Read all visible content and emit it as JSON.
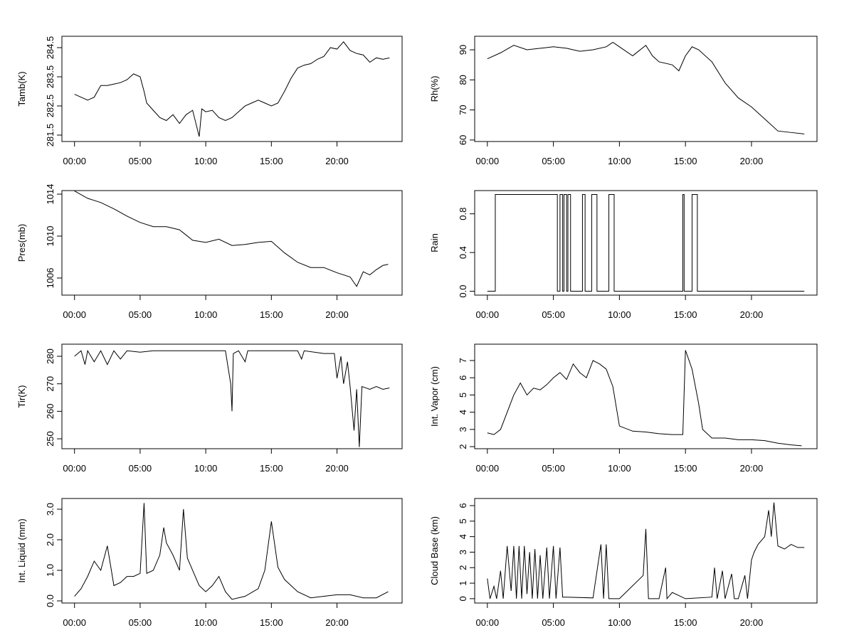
{
  "chart_data": [
    {
      "type": "line",
      "y_label": "Tamb(K)",
      "color": "#000000",
      "x": [
        0,
        0.5,
        1,
        1.5,
        2,
        2.5,
        3,
        3.5,
        4,
        4.5,
        5,
        5.3,
        5.5,
        6,
        6.5,
        7,
        7.5,
        8,
        8.5,
        9,
        9.5,
        9.7,
        10,
        10.5,
        11,
        11.5,
        12,
        12.5,
        13,
        13.5,
        14,
        14.5,
        15,
        15.5,
        16,
        16.5,
        17,
        17.5,
        18,
        18.5,
        19,
        19.5,
        20,
        20.5,
        21,
        21.5,
        22,
        22.5,
        23,
        23.5,
        24
      ],
      "values": [
        282.9,
        282.8,
        282.7,
        282.8,
        283.2,
        283.2,
        283.25,
        283.3,
        283.4,
        283.6,
        283.5,
        283.0,
        282.6,
        282.35,
        282.1,
        282.0,
        282.2,
        281.9,
        282.2,
        282.35,
        281.45,
        282.4,
        282.3,
        282.35,
        282.1,
        282.0,
        282.1,
        282.3,
        282.5,
        282.6,
        282.7,
        282.6,
        282.5,
        282.6,
        283.0,
        283.45,
        283.8,
        283.9,
        283.95,
        284.1,
        284.2,
        284.5,
        284.45,
        284.7,
        284.4,
        284.3,
        284.25,
        284.0,
        284.15,
        284.1,
        284.15
      ],
      "xlim": [
        -0.96,
        24.96
      ],
      "xticks": [
        {
          "value": 0,
          "label": "00:00"
        },
        {
          "value": 5,
          "label": "05:00"
        },
        {
          "value": 10,
          "label": "10:00"
        },
        {
          "value": 15,
          "label": "15:00"
        },
        {
          "value": 20,
          "label": "20:00"
        }
      ],
      "ylim": [
        281.28,
        284.89
      ],
      "yticks": [
        281.5,
        282.5,
        283.5,
        284.5
      ]
    },
    {
      "type": "line",
      "y_label": "Rh(%)",
      "color": "#000000",
      "x": [
        0,
        1,
        2,
        3,
        4,
        5,
        6,
        7,
        8,
        9,
        9.5,
        10,
        11,
        12,
        12.5,
        13,
        14,
        14.5,
        15,
        15.5,
        16,
        17,
        18,
        19,
        20,
        21,
        22,
        23,
        24
      ],
      "values": [
        87,
        89,
        91.5,
        90,
        90.5,
        91,
        90.5,
        89.5,
        90,
        91,
        92.5,
        91,
        88,
        91.5,
        88,
        86,
        85,
        83,
        88,
        91,
        90,
        86,
        79,
        74,
        71,
        67,
        63,
        62.5,
        62
      ],
      "xlim": [
        -0.96,
        24.96
      ],
      "xticks": [
        {
          "value": 0,
          "label": "00:00"
        },
        {
          "value": 5,
          "label": "05:00"
        },
        {
          "value": 10,
          "label": "10:00"
        },
        {
          "value": 15,
          "label": "15:00"
        },
        {
          "value": 20,
          "label": "20:00"
        }
      ],
      "ylim": [
        59.5,
        94.5
      ],
      "yticks": [
        60,
        70,
        80,
        90
      ]
    },
    {
      "type": "line",
      "y_label": "Pres(mb)",
      "color": "#000000",
      "x": [
        0,
        1,
        2,
        3,
        4,
        5,
        6,
        7,
        8,
        9,
        10,
        11,
        12,
        13,
        14,
        15,
        16,
        17,
        18,
        19,
        20,
        21,
        21.5,
        22,
        22.5,
        23,
        23.5,
        23.9
      ],
      "values": [
        1014.3,
        1013.6,
        1013.2,
        1012.6,
        1011.9,
        1011.3,
        1010.9,
        1010.9,
        1010.6,
        1009.6,
        1009.4,
        1009.7,
        1009.1,
        1009.2,
        1009.4,
        1009.5,
        1008.4,
        1007.5,
        1007.0,
        1007.0,
        1006.5,
        1006.1,
        1005.2,
        1006.6,
        1006.3,
        1006.8,
        1007.2,
        1007.3
      ],
      "xlim": [
        -0.96,
        24.96
      ],
      "xticks": [
        {
          "value": 0,
          "label": "00:00"
        },
        {
          "value": 5,
          "label": "05:00"
        },
        {
          "value": 10,
          "label": "10:00"
        },
        {
          "value": 15,
          "label": "15:00"
        },
        {
          "value": 20,
          "label": "20:00"
        }
      ],
      "ylim": [
        1004.37,
        1014.34
      ],
      "yticks": [
        1006,
        1010,
        1014
      ]
    },
    {
      "type": "line",
      "y_label": "Rain",
      "color": "#000000",
      "x": [
        0,
        0.6,
        0.6,
        5.3,
        5.3,
        5.5,
        5.5,
        5.7,
        5.7,
        5.8,
        5.8,
        6.0,
        6.0,
        6.1,
        6.1,
        6.3,
        6.3,
        7.2,
        7.2,
        7.4,
        7.4,
        7.9,
        7.9,
        8.3,
        8.3,
        9.2,
        9.2,
        9.6,
        9.6,
        14.8,
        14.8,
        14.9,
        14.9,
        15.5,
        15.5,
        15.9,
        15.9,
        24
      ],
      "values": [
        0,
        0,
        1,
        1,
        0,
        0,
        1,
        1,
        0,
        0,
        1,
        1,
        0,
        0,
        1,
        1,
        0,
        0,
        1,
        1,
        0,
        0,
        1,
        1,
        0,
        0,
        1,
        1,
        0,
        0,
        1,
        1,
        0,
        0,
        1,
        1,
        0,
        0
      ],
      "xlim": [
        -0.96,
        24.96
      ],
      "xticks": [
        {
          "value": 0,
          "label": "00:00"
        },
        {
          "value": 5,
          "label": "05:00"
        },
        {
          "value": 10,
          "label": "10:00"
        },
        {
          "value": 15,
          "label": "15:00"
        },
        {
          "value": 20,
          "label": "20:00"
        }
      ],
      "ylim": [
        -0.04,
        1.04
      ],
      "yticks": [
        {
          "value": 0,
          "label": "0.0"
        },
        {
          "value": 0.4,
          "label": "0.4"
        },
        {
          "value": 0.8,
          "label": "0.8"
        }
      ]
    },
    {
      "type": "line",
      "y_label": "Tir(K)",
      "color": "#000000",
      "x": [
        0,
        0.5,
        0.8,
        1,
        1.5,
        2,
        2.5,
        3,
        3.5,
        4,
        5,
        6,
        8,
        10,
        11.5,
        11.9,
        12,
        12.1,
        12.5,
        13,
        13.2,
        15,
        17,
        17.3,
        17.5,
        19,
        19.8,
        20,
        20.3,
        20.5,
        20.8,
        21,
        21.3,
        21.5,
        21.7,
        21.9,
        22.5,
        23,
        23.5,
        24
      ],
      "values": [
        280,
        282,
        277,
        282,
        278,
        282,
        277,
        282,
        279,
        282,
        281.5,
        282,
        282,
        282,
        282,
        270,
        260,
        281,
        282,
        278,
        282,
        282,
        282,
        279,
        282,
        281,
        281,
        272,
        280,
        270,
        278,
        269,
        253,
        268,
        247,
        269,
        268,
        269,
        268,
        268.5
      ],
      "xlim": [
        -0.96,
        24.96
      ],
      "xticks": [
        {
          "value": 0,
          "label": "00:00"
        },
        {
          "value": 5,
          "label": "05:00"
        },
        {
          "value": 10,
          "label": "10:00"
        },
        {
          "value": 15,
          "label": "15:00"
        },
        {
          "value": 20,
          "label": "20:00"
        }
      ],
      "ylim": [
        246.4,
        284.4
      ],
      "yticks": [
        250,
        260,
        270,
        280
      ]
    },
    {
      "type": "line",
      "y_label": "Int. Vapor (cm)",
      "color": "#000000",
      "x": [
        0,
        0.5,
        1,
        1.5,
        2,
        2.5,
        3,
        3.5,
        4,
        4.5,
        5,
        5.5,
        6,
        6.5,
        7,
        7.5,
        8,
        8.5,
        9,
        9.5,
        10,
        11,
        12,
        13,
        14,
        14.8,
        15,
        15.5,
        16,
        16.3,
        17,
        18,
        19,
        20,
        21,
        22,
        23,
        23.8
      ],
      "values": [
        2.8,
        2.7,
        3.0,
        4.0,
        5.0,
        5.7,
        5.0,
        5.4,
        5.3,
        5.6,
        6.0,
        6.3,
        5.9,
        6.8,
        6.3,
        6.0,
        7.0,
        6.8,
        6.5,
        5.5,
        3.2,
        2.9,
        2.85,
        2.75,
        2.7,
        2.7,
        7.6,
        6.5,
        4.5,
        3.0,
        2.5,
        2.5,
        2.4,
        2.4,
        2.35,
        2.2,
        2.1,
        2.05
      ],
      "xlim": [
        -0.96,
        24.96
      ],
      "xticks": [
        {
          "value": 0,
          "label": "00:00"
        },
        {
          "value": 5,
          "label": "05:00"
        },
        {
          "value": 10,
          "label": "10:00"
        },
        {
          "value": 15,
          "label": "15:00"
        },
        {
          "value": 20,
          "label": "20:00"
        }
      ],
      "ylim": [
        1.88,
        7.95
      ],
      "yticks": [
        2,
        3,
        4,
        5,
        6,
        7
      ]
    },
    {
      "type": "line",
      "y_label": "Int. Liquid (mm)",
      "color": "#000000",
      "x": [
        0,
        0.5,
        1,
        1.5,
        2,
        2.5,
        3,
        3.5,
        4,
        4.5,
        5,
        5.3,
        5.5,
        6,
        6.5,
        6.8,
        7,
        7.5,
        8,
        8.3,
        8.6,
        9,
        9.5,
        10,
        10.5,
        11,
        11.5,
        12,
        13,
        14,
        14.5,
        15,
        15.5,
        16,
        17,
        18,
        19,
        20,
        21,
        22,
        23,
        23.9
      ],
      "values": [
        0.15,
        0.4,
        0.8,
        1.3,
        1.0,
        1.8,
        0.5,
        0.6,
        0.8,
        0.8,
        0.9,
        3.2,
        0.9,
        1.0,
        1.5,
        2.4,
        1.9,
        1.5,
        1.0,
        3.0,
        1.4,
        1.0,
        0.5,
        0.3,
        0.5,
        0.8,
        0.3,
        0.05,
        0.15,
        0.4,
        1.0,
        2.6,
        1.1,
        0.7,
        0.3,
        0.1,
        0.15,
        0.2,
        0.2,
        0.1,
        0.1,
        0.3
      ],
      "xlim": [
        -0.96,
        24.96
      ],
      "xticks": [
        {
          "value": 0,
          "label": "00:00"
        },
        {
          "value": 5,
          "label": "05:00"
        },
        {
          "value": 10,
          "label": "10:00"
        },
        {
          "value": 15,
          "label": "15:00"
        },
        {
          "value": 20,
          "label": "20:00"
        }
      ],
      "ylim": [
        -0.07,
        3.35
      ],
      "yticks": [
        {
          "value": 0,
          "label": "0.0"
        },
        {
          "value": 1,
          "label": "1.0"
        },
        {
          "value": 2,
          "label": "2.0"
        },
        {
          "value": 3,
          "label": "3.0"
        }
      ]
    },
    {
      "type": "line",
      "y_label": "Cloud Base (km)",
      "color": "#000000",
      "x": [
        0,
        0.2,
        0.5,
        0.7,
        1,
        1.2,
        1.5,
        1.8,
        2,
        2.2,
        2.4,
        2.6,
        2.8,
        3,
        3.2,
        3.4,
        3.6,
        3.8,
        4,
        4.2,
        4.5,
        4.7,
        5,
        5.2,
        5.5,
        5.7,
        6,
        8,
        8.6,
        8.8,
        9,
        9.2,
        10,
        11.8,
        12,
        12.2,
        13,
        13.5,
        13.6,
        14,
        15,
        17,
        17.2,
        17.4,
        17.8,
        18,
        18.5,
        18.7,
        19,
        19.5,
        19.7,
        20,
        20.2,
        20.5,
        21,
        21.3,
        21.5,
        21.7,
        22,
        22.5,
        23,
        23.5,
        24
      ],
      "values": [
        1.3,
        0,
        0.8,
        0,
        1.8,
        0,
        3.4,
        0.5,
        3.4,
        0,
        3.4,
        0,
        3.4,
        0.3,
        3.0,
        0,
        3.2,
        0,
        2.8,
        0,
        3.3,
        0,
        3.4,
        0,
        3.3,
        0.1,
        0.1,
        0.05,
        3.5,
        0,
        3.5,
        0,
        0,
        1.5,
        4.5,
        0,
        0,
        2,
        0,
        0.4,
        0,
        0.1,
        2,
        0,
        1.8,
        0,
        1.6,
        0,
        0,
        1.5,
        0,
        2.5,
        3,
        3.5,
        4,
        5.7,
        4,
        6.2,
        3.4,
        3.2,
        3.5,
        3.3,
        3.3
      ],
      "xlim": [
        -0.96,
        24.96
      ],
      "xticks": [
        {
          "value": 0,
          "label": "00:00"
        },
        {
          "value": 5,
          "label": "05:00"
        },
        {
          "value": 10,
          "label": "10:00"
        },
        {
          "value": 15,
          "label": "15:00"
        },
        {
          "value": 20,
          "label": "20:00"
        }
      ],
      "ylim": [
        -0.28,
        6.46
      ],
      "yticks": [
        0,
        1,
        2,
        3,
        4,
        5,
        6
      ]
    }
  ]
}
